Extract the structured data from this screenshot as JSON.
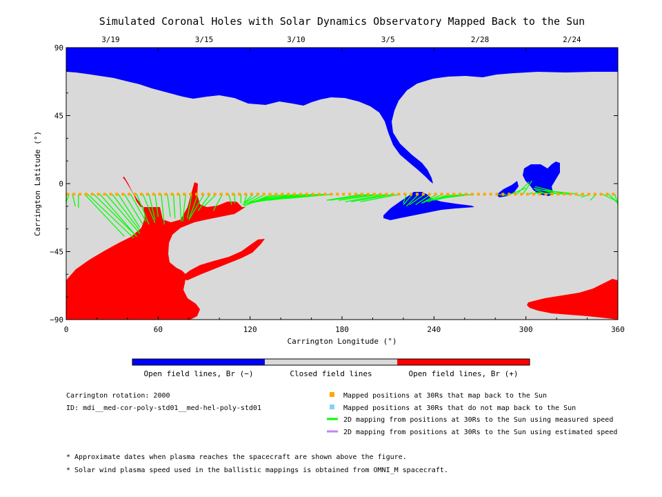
{
  "chart_data": {
    "type": "map",
    "title": "Simulated Coronal Holes with Solar Dynamics Observatory Mapped Back to the Sun",
    "xlabel": "Carrington Longitude (°)",
    "ylabel": "Carrington Latitude (°)",
    "xlim": [
      0,
      360
    ],
    "ylim": [
      -90,
      90
    ],
    "x_ticks": [
      0,
      60,
      120,
      180,
      240,
      300,
      360
    ],
    "y_ticks": [
      -90,
      -45,
      0,
      45,
      90
    ],
    "top_axis": {
      "dates": [
        {
          "label": "3/19",
          "longitude": 29
        },
        {
          "label": "3/15",
          "longitude": 90
        },
        {
          "label": "3/10",
          "longitude": 150
        },
        {
          "label": "3/5",
          "longitude": 210
        },
        {
          "label": "2/28",
          "longitude": 270
        },
        {
          "label": "2/24",
          "longitude": 330
        }
      ]
    },
    "colorbar": {
      "open_negative": {
        "label": "Open field lines, Br (−)",
        "color": "#0000ff"
      },
      "closed": {
        "label": "Closed field lines",
        "color": "#d9d9d9"
      },
      "open_positive": {
        "label": "Open field lines, Br (+)",
        "color": "#ff0000"
      }
    },
    "mapped_positions": {
      "latitude": -7,
      "longitude_start": 1,
      "longitude_end": 359,
      "longitude_step": 4,
      "color": "#ffa500"
    },
    "mapping_lines": [
      {
        "from": 0,
        "to": [
          0,
          -13
        ]
      },
      {
        "from": 2,
        "to": [
          0,
          -12
        ]
      },
      {
        "from": 4,
        "to": [
          6,
          -15
        ]
      },
      {
        "from": 8,
        "to": [
          8,
          -16
        ]
      },
      {
        "from": 12,
        "to": [
          38,
          -35
        ]
      },
      {
        "from": 14,
        "to": [
          44,
          -36
        ]
      },
      {
        "from": 18,
        "to": [
          46,
          -35
        ]
      },
      {
        "from": 22,
        "to": [
          46,
          -35
        ]
      },
      {
        "from": 26,
        "to": [
          48,
          -33
        ]
      },
      {
        "from": 30,
        "to": [
          48,
          -31
        ]
      },
      {
        "from": 34,
        "to": [
          48,
          -29
        ]
      },
      {
        "from": 38,
        "to": [
          50,
          -27
        ]
      },
      {
        "from": 42,
        "to": [
          52,
          -25
        ]
      },
      {
        "from": 46,
        "to": [
          54,
          -27
        ]
      },
      {
        "from": 50,
        "to": [
          58,
          -26
        ]
      },
      {
        "from": 54,
        "to": [
          58,
          -24
        ]
      },
      {
        "from": 58,
        "to": [
          60,
          -22
        ]
      },
      {
        "from": 62,
        "to": [
          64,
          -27
        ]
      },
      {
        "from": 66,
        "to": [
          68,
          -22
        ]
      },
      {
        "from": 70,
        "to": [
          71,
          -23
        ]
      },
      {
        "from": 74,
        "to": [
          75,
          -25
        ]
      },
      {
        "from": 78,
        "to": [
          76,
          -25
        ]
      },
      {
        "from": 82,
        "to": [
          79,
          -23
        ]
      },
      {
        "from": 86,
        "to": [
          80,
          -24
        ]
      },
      {
        "from": 90,
        "to": [
          80,
          -24
        ]
      },
      {
        "from": 94,
        "to": [
          86,
          -18
        ]
      },
      {
        "from": 98,
        "to": [
          90,
          -15
        ]
      },
      {
        "from": 102,
        "to": [
          96,
          -18
        ]
      },
      {
        "from": 106,
        "to": [
          108,
          -14
        ]
      },
      {
        "from": 110,
        "to": [
          110,
          -13
        ]
      },
      {
        "from": 114,
        "to": [
          114,
          -13
        ]
      },
      {
        "from": 118,
        "to": [
          116,
          -13
        ]
      },
      {
        "from": 122,
        "to": [
          116,
          -13
        ]
      },
      {
        "from": 126,
        "to": [
          116,
          -13
        ]
      },
      {
        "from": 130,
        "to": [
          116,
          -14
        ]
      },
      {
        "from": 134,
        "to": [
          116,
          -15
        ]
      },
      {
        "from": 138,
        "to": [
          115,
          -14
        ]
      },
      {
        "from": 142,
        "to": [
          118,
          -13
        ]
      },
      {
        "from": 146,
        "to": [
          120,
          -13
        ]
      },
      {
        "from": 150,
        "to": [
          122,
          -12
        ]
      },
      {
        "from": 154,
        "to": [
          124,
          -12
        ]
      },
      {
        "from": 158,
        "to": [
          124,
          -12
        ]
      },
      {
        "from": 162,
        "to": [
          128,
          -11
        ]
      },
      {
        "from": 166,
        "to": [
          132,
          -11
        ]
      },
      {
        "from": 170,
        "to": [
          136,
          -10
        ]
      },
      {
        "from": 174,
        "to": [
          142,
          -10
        ]
      },
      {
        "from": 194,
        "to": [
          170,
          -11
        ]
      },
      {
        "from": 198,
        "to": [
          172,
          -11
        ]
      },
      {
        "from": 202,
        "to": [
          178,
          -11
        ]
      },
      {
        "from": 206,
        "to": [
          178,
          -11
        ]
      },
      {
        "from": 210,
        "to": [
          182,
          -12
        ]
      },
      {
        "from": 214,
        "to": [
          186,
          -12
        ]
      },
      {
        "from": 218,
        "to": [
          192,
          -12
        ]
      },
      {
        "from": 222,
        "to": [
          220,
          -13
        ]
      },
      {
        "from": 226,
        "to": [
          220,
          -14
        ]
      },
      {
        "from": 230,
        "to": [
          222,
          -15
        ]
      },
      {
        "from": 234,
        "to": [
          224,
          -14
        ]
      },
      {
        "from": 238,
        "to": [
          228,
          -14
        ]
      },
      {
        "from": 242,
        "to": [
          232,
          -13
        ]
      },
      {
        "from": 246,
        "to": [
          232,
          -13
        ]
      },
      {
        "from": 250,
        "to": [
          236,
          -12
        ]
      },
      {
        "from": 254,
        "to": [
          238,
          -11
        ]
      },
      {
        "from": 258,
        "to": [
          240,
          -11
        ]
      },
      {
        "from": 262,
        "to": [
          241,
          -10
        ]
      },
      {
        "from": 266,
        "to": [
          242,
          -10
        ]
      },
      {
        "from": 282,
        "to": [
          286,
          -8
        ]
      },
      {
        "from": 286,
        "to": [
          288,
          -8
        ]
      },
      {
        "from": 290,
        "to": [
          300,
          -3
        ]
      },
      {
        "from": 294,
        "to": [
          302,
          1
        ]
      },
      {
        "from": 298,
        "to": [
          304,
          2
        ]
      },
      {
        "from": 302,
        "to": [
          304,
          -6
        ]
      },
      {
        "from": 306,
        "to": [
          306,
          -6
        ]
      },
      {
        "from": 310,
        "to": [
          306,
          -6
        ]
      },
      {
        "from": 314,
        "to": [
          306,
          -4
        ]
      },
      {
        "from": 318,
        "to": [
          308,
          -6
        ]
      },
      {
        "from": 322,
        "to": [
          305,
          -3
        ]
      },
      {
        "from": 326,
        "to": [
          306,
          -2
        ]
      },
      {
        "from": 330,
        "to": [
          306,
          -6
        ]
      },
      {
        "from": 334,
        "to": [
          308,
          -4
        ]
      },
      {
        "from": 338,
        "to": [
          334,
          -8
        ]
      },
      {
        "from": 342,
        "to": [
          336,
          -9
        ]
      },
      {
        "from": 346,
        "to": [
          342,
          -11
        ]
      },
      {
        "from": 350,
        "to": [
          360,
          -12
        ]
      },
      {
        "from": 354,
        "to": [
          360,
          -13
        ]
      },
      {
        "from": 358,
        "to": [
          360,
          -14
        ]
      }
    ],
    "mapping_line_color": "#00ff00",
    "mapping_line_color_estimated": "#bf86f0",
    "unmapped_color": "#87cefa"
  },
  "info": {
    "rotation": "Carrington rotation: 2000",
    "id": "ID: mdi__med-cor-poly-std01__med-hel-poly-std01"
  },
  "legend": [
    {
      "label": "Mapped positions at 30Rs that map back to the Sun",
      "kind": "square",
      "color": "#ffa500"
    },
    {
      "label": "Mapped positions at 30Rs that do not map back to the Sun",
      "kind": "square",
      "color": "#87cefa"
    },
    {
      "label": "2D mapping from positions at 30Rs to the Sun using measured speed",
      "kind": "line",
      "color": "#00ff00"
    },
    {
      "label": "2D mapping from positions at 30Rs to the Sun using estimated speed",
      "kind": "line",
      "color": "#bf86f0"
    }
  ],
  "footnotes": [
    "* Approximate dates when plasma reaches the spacecraft are shown above the figure.",
    "* Solar wind plasma speed used in the ballistic mappings is obtained from OMNI_M spacecraft."
  ]
}
